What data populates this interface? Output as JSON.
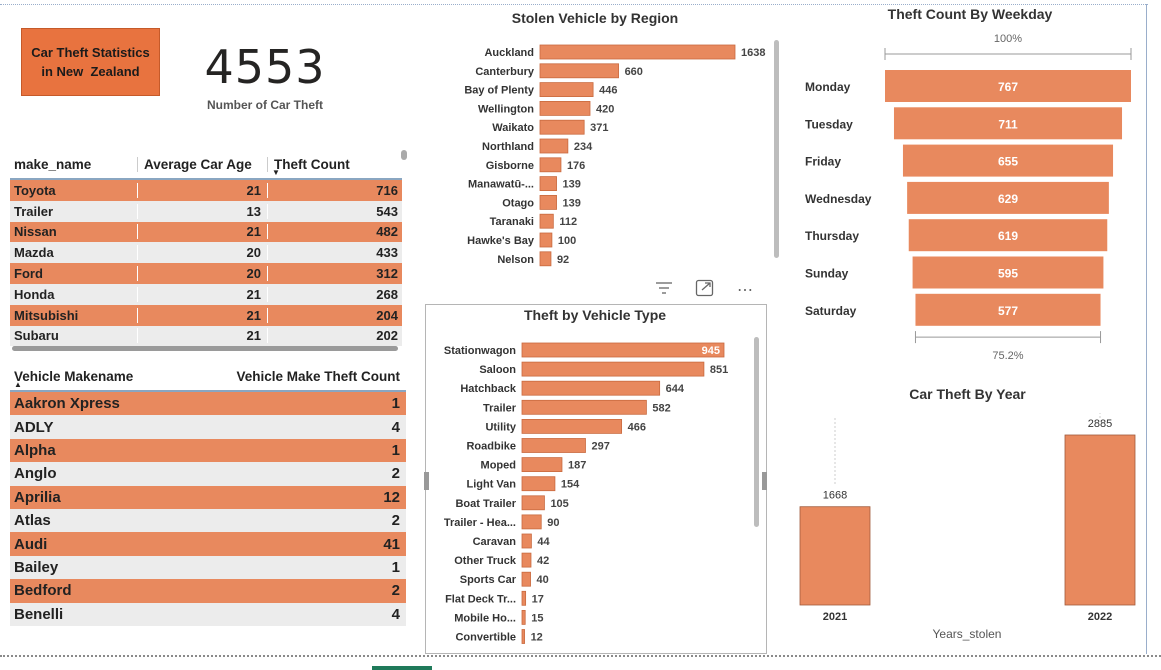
{
  "title_card": {
    "line1": "Car Theft Statistics",
    "line2": "in New  Zealand"
  },
  "kpi": {
    "value": "4553",
    "label": "Number of Car Theft"
  },
  "colors": {
    "bar": "#e8895e",
    "bar_stroke": "#c96a3f",
    "row_alt": "#ececec"
  },
  "make_table": {
    "headers": [
      "make_name",
      "Average Car Age",
      "Theft Count"
    ],
    "rows": [
      [
        "Toyota",
        "21",
        "716"
      ],
      [
        "Trailer",
        "13",
        "543"
      ],
      [
        "Nissan",
        "21",
        "482"
      ],
      [
        "Mazda",
        "20",
        "433"
      ],
      [
        "Ford",
        "20",
        "312"
      ],
      [
        "Honda",
        "21",
        "268"
      ],
      [
        "Mitsubishi",
        "21",
        "204"
      ],
      [
        "Subaru",
        "21",
        "202"
      ]
    ]
  },
  "makename_table": {
    "headers": [
      "Vehicle Makename",
      "Vehicle Make Theft Count"
    ],
    "rows": [
      [
        "Aakron Xpress",
        "1"
      ],
      [
        "ADLY",
        "4"
      ],
      [
        "Alpha",
        "1"
      ],
      [
        "Anglo",
        "2"
      ],
      [
        "Aprilia",
        "12"
      ],
      [
        "Atlas",
        "2"
      ],
      [
        "Audi",
        "41"
      ],
      [
        "Bailey",
        "1"
      ],
      [
        "Bedford",
        "2"
      ],
      [
        "Benelli",
        "4"
      ]
    ]
  },
  "visual_toolbar": {
    "filter_icon": "filter-icon",
    "focus_icon": "focus-mode-icon",
    "more_icon": "more-options-icon"
  },
  "chart_data": [
    {
      "type": "bar",
      "orientation": "horizontal",
      "title": "Stolen Vehicle by Region",
      "categories": [
        "Auckland",
        "Canterbury",
        "Bay of Plenty",
        "Wellington",
        "Waikato",
        "Northland",
        "Gisborne",
        "Manawatū-...",
        "Otago",
        "Taranaki",
        "Hawke's Bay",
        "Nelson"
      ],
      "values": [
        1638,
        660,
        446,
        420,
        371,
        234,
        176,
        139,
        139,
        112,
        100,
        92
      ],
      "data_labels": true
    },
    {
      "type": "bar",
      "orientation": "horizontal",
      "title": "Theft by Vehicle Type",
      "categories": [
        "Stationwagon",
        "Saloon",
        "Hatchback",
        "Trailer",
        "Utility",
        "Roadbike",
        "Moped",
        "Light Van",
        "Boat Trailer",
        "Trailer - Hea...",
        "Caravan",
        "Other Truck",
        "Sports Car",
        "Flat Deck Tr...",
        "Mobile Ho...",
        "Convertible"
      ],
      "values": [
        945,
        851,
        644,
        582,
        466,
        297,
        187,
        154,
        105,
        90,
        44,
        42,
        40,
        17,
        15,
        12
      ],
      "data_labels": true
    },
    {
      "type": "bar",
      "subtype": "funnel",
      "title": "Theft Count By Weekday",
      "categories": [
        "Monday",
        "Tuesday",
        "Friday",
        "Wednesday",
        "Thursday",
        "Sunday",
        "Saturday"
      ],
      "values": [
        767,
        711,
        655,
        629,
        619,
        595,
        577
      ],
      "top_percent": "100%",
      "bottom_percent": "75.2%"
    },
    {
      "type": "bar",
      "title": "Car Theft By Year",
      "categories": [
        "2021",
        "2022"
      ],
      "values": [
        1668,
        2885
      ],
      "xlabel": "Years_stolen",
      "ylabel": ""
    }
  ]
}
